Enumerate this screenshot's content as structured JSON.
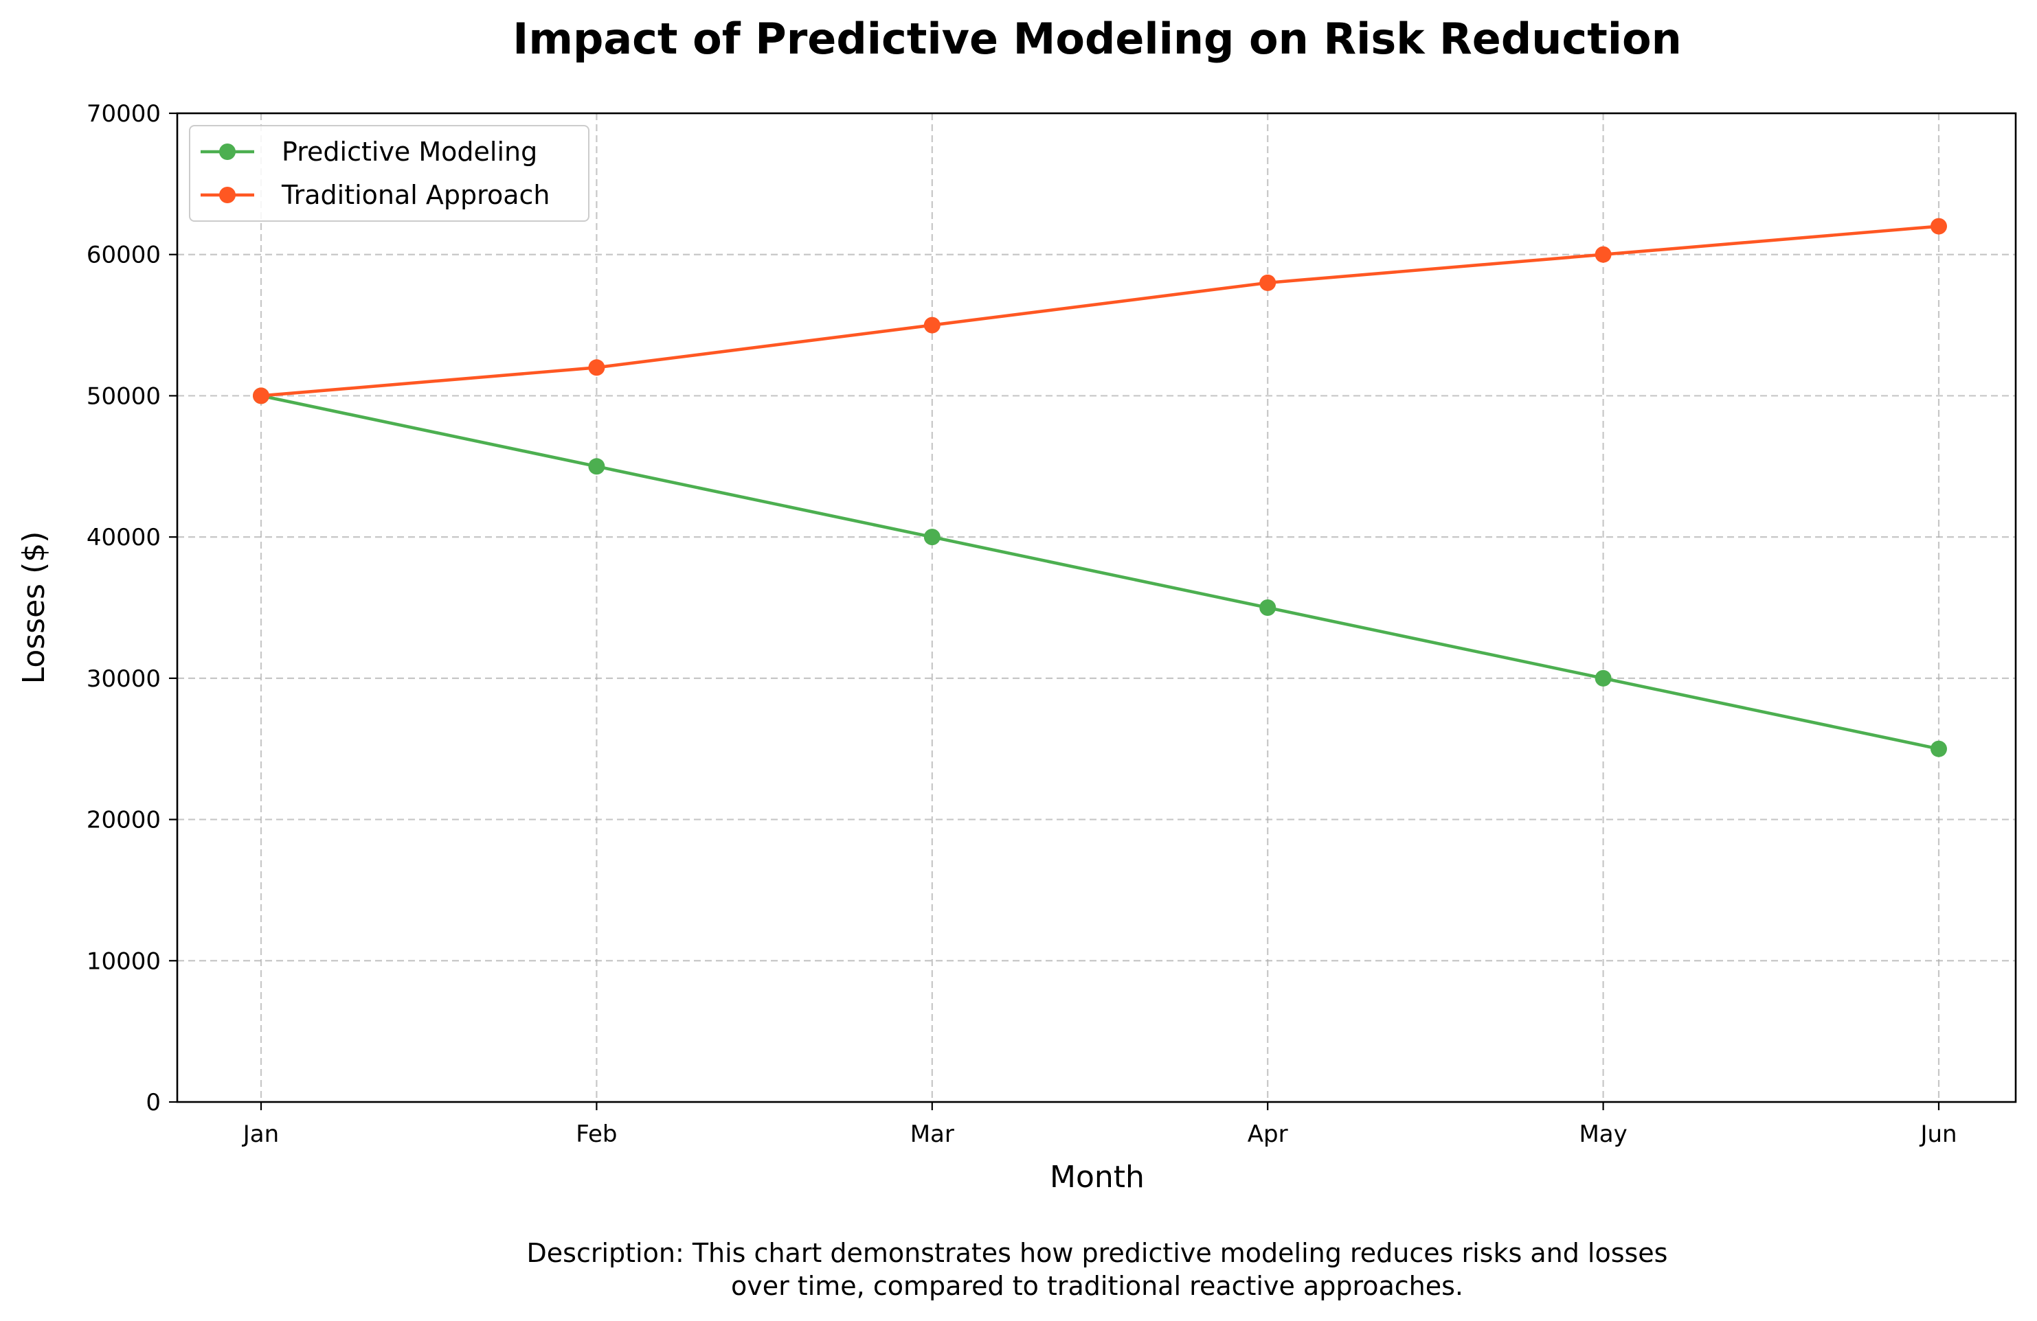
{
  "chart_data": {
    "type": "line",
    "title": "Impact of Predictive Modeling on Risk Reduction",
    "xlabel": "Month",
    "ylabel": "Losses ($)",
    "categories": [
      "Jan",
      "Feb",
      "Mar",
      "Apr",
      "May",
      "Jun"
    ],
    "ylim": [
      0,
      70000
    ],
    "yticks": [
      "0",
      "10000",
      "20000",
      "30000",
      "40000",
      "50000",
      "60000",
      "70000"
    ],
    "grid": true,
    "legend_position": "top-left",
    "series": [
      {
        "name": "Predictive Modeling",
        "color": "#4caf50",
        "values": [
          50000,
          45000,
          40000,
          35000,
          30000,
          25000
        ]
      },
      {
        "name": "Traditional Approach",
        "color": "#ff5722",
        "values": [
          50000,
          52000,
          55000,
          58000,
          60000,
          62000
        ]
      }
    ],
    "description_lines": [
      "Description: This chart demonstrates how predictive modeling reduces risks and losses",
      "over time, compared to traditional reactive approaches."
    ]
  }
}
